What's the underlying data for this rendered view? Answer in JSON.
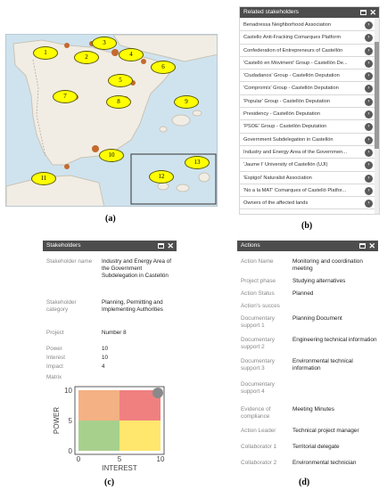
{
  "map": {
    "markers": [
      "1",
      "2",
      "3",
      "4",
      "5",
      "6",
      "7",
      "8",
      "9",
      "10",
      "11",
      "12",
      "13"
    ]
  },
  "captions": {
    "a": "(a)",
    "b": "(b)",
    "c": "(c)",
    "d": "(d)"
  },
  "related": {
    "title": "Related stakeholders",
    "items": [
      "Benadressa Neighborhood Association",
      "Castello Anti-Fracking Comarques Platform",
      "Confederation of Entrepreneurs of Castellón",
      "'Castelló en Moviment' Group - Castellón De...",
      "'Ciudadanos' Group - Castellón Deputation",
      "'Compromís' Group - Castellón Deputation",
      "'Popular' Group - Castellón Deputation",
      "Presidency - Castellón Deputation",
      "'PSOE' Group - Castellón Deputation",
      "Government Subdelegation in Castellón",
      "Industry and Energy Area of the Governmen...",
      "'Jaume I' University of Castellón (UJI)",
      "'Espigol' Naturalist Association",
      "'No a la MAT' Comarques of Castelló Platfor...",
      "Owners of the affected lands"
    ]
  },
  "stakeholder": {
    "title": "Stakeholders",
    "name_label": "Stakeholder name",
    "name_value": "Industry and Energy Area of the Government Subdelegation in Castellón",
    "category_label": "Stakeholder category",
    "category_value": "Planning, Permitting and Implementing Authorities",
    "project_label": "Project",
    "project_value": "Number 8",
    "power_label": "Power",
    "power_value": "10",
    "interest_label": "Interest",
    "interest_value": "10",
    "impact_label": "Impact",
    "impact_value": "4",
    "matrix_label": "Matrix"
  },
  "chart_data": {
    "type": "scatter",
    "xlabel": "INTEREST",
    "ylabel": "POWER",
    "xlim": [
      0,
      10
    ],
    "ylim": [
      0,
      10
    ],
    "xticks": [
      "0",
      "5",
      "10"
    ],
    "yticks": [
      "0",
      "5",
      "10"
    ],
    "quadrants": {
      "low_low": "#a8d08d",
      "low_high": "#f4b183",
      "high_low": "#ffe66d",
      "high_high": "#f08080"
    },
    "points": [
      {
        "x": 10,
        "y": 10
      }
    ],
    "point_color": "#8a8a8a"
  },
  "actions": {
    "title": "Actions",
    "rows": [
      {
        "k": "Action Name",
        "v": "Monitoring and coordination meeting"
      },
      {
        "k": "Project phase",
        "v": "Studying alternatives"
      },
      {
        "k": "Action Status",
        "v": "Planned"
      },
      {
        "k": "Action's succes",
        "v": ""
      },
      {
        "k": "Documentary support 1",
        "v": "Planning Document"
      },
      {
        "k": "Documentary support 2",
        "v": "Engineering technical information"
      },
      {
        "k": "Documentary support 3",
        "v": "Environmental technical information"
      },
      {
        "k": "Documentary support 4",
        "v": ""
      },
      {
        "k": "Evidence of compliance",
        "v": "Meeting Minutes"
      },
      {
        "k": "Action Leader",
        "v": "Technical project manager"
      },
      {
        "k": "Collaborator 1",
        "v": "Territorial delegate"
      },
      {
        "k": "Collaborator 2",
        "v": "Environmental technician"
      }
    ]
  }
}
